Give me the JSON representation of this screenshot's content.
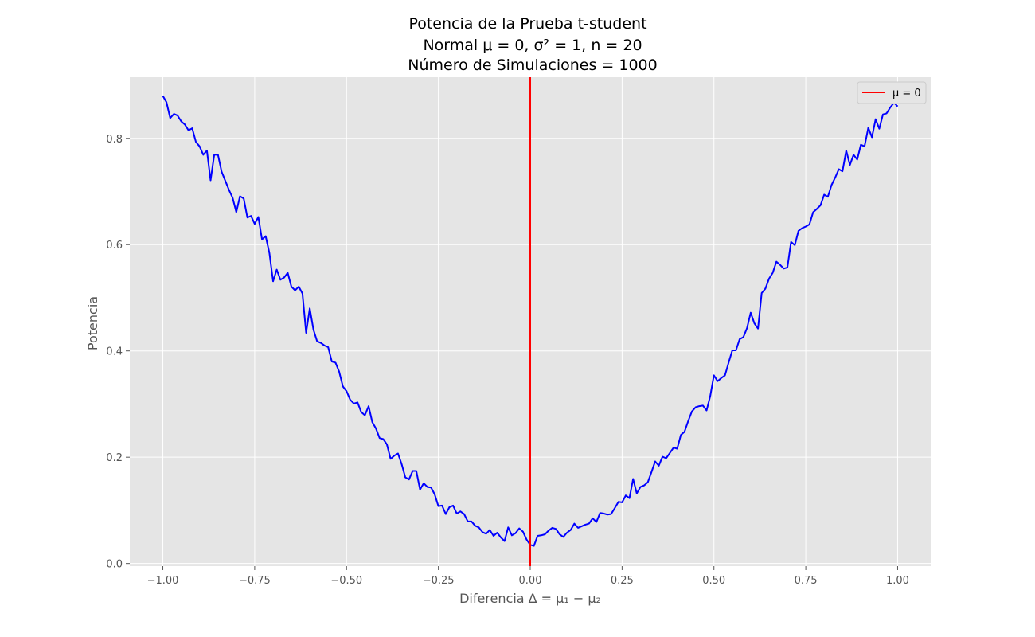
{
  "chart_data": {
    "type": "line",
    "title_lines": [
      "Potencia de la Prueba t-student",
      "Normal μ = 0, σ² = 1, n = 20",
      "Número de Simulaciones = 1000"
    ],
    "xlabel": "Diferencia Δ = μ₁ − μ₂",
    "ylabel": "Potencia",
    "xlim": [
      -1.09,
      1.09
    ],
    "ylim": [
      -0.005,
      0.915
    ],
    "xticks": [
      -1.0,
      -0.75,
      -0.5,
      -0.25,
      0.0,
      0.25,
      0.5,
      0.75,
      1.0
    ],
    "xtick_labels": [
      "−1.00",
      "−0.75",
      "−0.50",
      "−0.25",
      "0.00",
      "0.25",
      "0.50",
      "0.75",
      "1.00"
    ],
    "yticks": [
      0.0,
      0.2,
      0.4,
      0.6,
      0.8
    ],
    "ytick_labels": [
      "0.0",
      "0.2",
      "0.4",
      "0.6",
      "0.8"
    ],
    "grid": true,
    "legend_position": "top-right",
    "series": [
      {
        "color": "#0000ff",
        "x": [
          -1.0,
          -0.99,
          -0.98,
          -0.97,
          -0.96,
          -0.95,
          -0.94,
          -0.93,
          -0.92,
          -0.91,
          -0.9,
          -0.89,
          -0.88,
          -0.87,
          -0.86,
          -0.85,
          -0.84,
          -0.83,
          -0.82,
          -0.81,
          -0.8,
          -0.79,
          -0.78,
          -0.77,
          -0.76,
          -0.75,
          -0.74,
          -0.73,
          -0.72,
          -0.71,
          -0.7,
          -0.69,
          -0.68,
          -0.67,
          -0.66,
          -0.65,
          -0.64,
          -0.63,
          -0.62,
          -0.61,
          -0.6,
          -0.59,
          -0.58,
          -0.57,
          -0.56,
          -0.55,
          -0.54,
          -0.53,
          -0.52,
          -0.51,
          -0.5,
          -0.49,
          -0.48,
          -0.47,
          -0.46,
          -0.45,
          -0.44,
          -0.43,
          -0.42,
          -0.41,
          -0.4,
          -0.39,
          -0.38,
          -0.37,
          -0.36,
          -0.35,
          -0.34,
          -0.33,
          -0.32,
          -0.31,
          -0.3,
          -0.29,
          -0.28,
          -0.27,
          -0.26,
          -0.25,
          -0.24,
          -0.23,
          -0.22,
          -0.21,
          -0.2,
          -0.19,
          -0.18,
          -0.17,
          -0.16,
          -0.15,
          -0.14,
          -0.13,
          -0.12,
          -0.11,
          -0.1,
          -0.09,
          -0.08,
          -0.07,
          -0.06,
          -0.05,
          -0.04,
          -0.03,
          -0.02,
          -0.01,
          0.0,
          0.01,
          0.02,
          0.03,
          0.04,
          0.05,
          0.06,
          0.07,
          0.08,
          0.09,
          0.1,
          0.11,
          0.12,
          0.13,
          0.14,
          0.15,
          0.16,
          0.17,
          0.18,
          0.19,
          0.2,
          0.21,
          0.22,
          0.23,
          0.24,
          0.25,
          0.26,
          0.27,
          0.28,
          0.29,
          0.3,
          0.31,
          0.32,
          0.33,
          0.34,
          0.35,
          0.36,
          0.37,
          0.38,
          0.39,
          0.4,
          0.41,
          0.42,
          0.43,
          0.44,
          0.45,
          0.46,
          0.47,
          0.48,
          0.49,
          0.5,
          0.51,
          0.52,
          0.53,
          0.54,
          0.55,
          0.56,
          0.57,
          0.58,
          0.59,
          0.6,
          0.61,
          0.62,
          0.63,
          0.64,
          0.65,
          0.66,
          0.67,
          0.68,
          0.69,
          0.7,
          0.71,
          0.72,
          0.73,
          0.74,
          0.75,
          0.76,
          0.77,
          0.78,
          0.79,
          0.8,
          0.81,
          0.82,
          0.83,
          0.84,
          0.85,
          0.86,
          0.87,
          0.88,
          0.89,
          0.9,
          0.91,
          0.92,
          0.93,
          0.94,
          0.95,
          0.96,
          0.97,
          0.98,
          0.99,
          1.0
        ],
        "y": [
          0.88,
          0.868,
          0.838,
          0.846,
          0.843,
          0.832,
          0.826,
          0.815,
          0.819,
          0.793,
          0.785,
          0.769,
          0.777,
          0.721,
          0.769,
          0.769,
          0.737,
          0.72,
          0.703,
          0.688,
          0.661,
          0.691,
          0.687,
          0.651,
          0.654,
          0.639,
          0.652,
          0.61,
          0.616,
          0.584,
          0.531,
          0.553,
          0.534,
          0.538,
          0.547,
          0.521,
          0.514,
          0.521,
          0.508,
          0.434,
          0.48,
          0.44,
          0.418,
          0.415,
          0.41,
          0.407,
          0.38,
          0.378,
          0.361,
          0.333,
          0.324,
          0.308,
          0.301,
          0.303,
          0.285,
          0.279,
          0.296,
          0.266,
          0.254,
          0.236,
          0.234,
          0.224,
          0.197,
          0.203,
          0.207,
          0.187,
          0.162,
          0.158,
          0.174,
          0.174,
          0.139,
          0.151,
          0.144,
          0.143,
          0.13,
          0.108,
          0.109,
          0.093,
          0.106,
          0.109,
          0.094,
          0.098,
          0.093,
          0.079,
          0.079,
          0.071,
          0.068,
          0.059,
          0.056,
          0.063,
          0.052,
          0.058,
          0.049,
          0.042,
          0.068,
          0.053,
          0.057,
          0.066,
          0.06,
          0.045,
          0.035,
          0.033,
          0.052,
          0.053,
          0.055,
          0.062,
          0.067,
          0.065,
          0.055,
          0.05,
          0.058,
          0.063,
          0.075,
          0.067,
          0.07,
          0.073,
          0.075,
          0.085,
          0.078,
          0.095,
          0.094,
          0.092,
          0.093,
          0.104,
          0.116,
          0.115,
          0.128,
          0.123,
          0.159,
          0.132,
          0.144,
          0.147,
          0.153,
          0.172,
          0.192,
          0.184,
          0.201,
          0.198,
          0.208,
          0.218,
          0.216,
          0.242,
          0.248,
          0.268,
          0.286,
          0.294,
          0.296,
          0.297,
          0.288,
          0.315,
          0.354,
          0.343,
          0.349,
          0.354,
          0.378,
          0.401,
          0.401,
          0.422,
          0.426,
          0.443,
          0.472,
          0.452,
          0.442,
          0.509,
          0.517,
          0.536,
          0.547,
          0.568,
          0.562,
          0.555,
          0.557,
          0.605,
          0.599,
          0.626,
          0.631,
          0.634,
          0.638,
          0.661,
          0.667,
          0.674,
          0.694,
          0.69,
          0.712,
          0.726,
          0.742,
          0.738,
          0.777,
          0.75,
          0.769,
          0.76,
          0.788,
          0.785,
          0.82,
          0.802,
          0.836,
          0.818,
          0.845,
          0.847,
          0.858,
          0.867,
          0.86
        ]
      }
    ],
    "vline": {
      "x": 0.0,
      "color": "#ff0000",
      "label": "μ = 0"
    }
  }
}
